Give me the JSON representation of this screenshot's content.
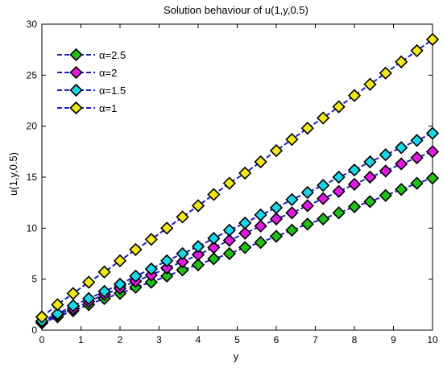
{
  "chart_data": {
    "type": "line",
    "title": "Solution behaviour of u(1,y,0.5)",
    "xlabel": "y",
    "ylabel": "u(1,y,0.5)",
    "xlim": [
      0,
      10
    ],
    "ylim": [
      0,
      30
    ],
    "xticks": [
      "0",
      "1",
      "2",
      "3",
      "4",
      "5",
      "6",
      "7",
      "8",
      "9",
      "10"
    ],
    "yticks": [
      "0",
      "5",
      "10",
      "15",
      "20",
      "25",
      "30"
    ],
    "grid": false,
    "legend_position": "top-left",
    "line_color": "#1f1fbf",
    "line_style": "dashed",
    "marker": "diamond",
    "x": [
      0,
      0.4,
      0.8,
      1.2,
      1.6,
      2.0,
      2.4,
      2.8,
      3.2,
      3.6,
      4.0,
      4.4,
      4.8,
      5.2,
      5.6,
      6.0,
      6.4,
      6.8,
      7.2,
      7.6,
      8.0,
      8.4,
      8.8,
      9.2,
      9.6,
      10.0
    ],
    "series": [
      {
        "name": "α=2.5",
        "marker_color": "#22c11a",
        "values": [
          0.7,
          1.3,
          1.9,
          2.5,
          3.1,
          3.6,
          4.2,
          4.7,
          5.3,
          5.9,
          6.4,
          7.0,
          7.5,
          8.1,
          8.6,
          9.2,
          9.8,
          10.4,
          10.9,
          11.5,
          12.1,
          12.6,
          13.2,
          13.8,
          14.4,
          14.9
        ]
      },
      {
        "name": "α=2",
        "marker_color": "#e21ae2",
        "values": [
          0.8,
          1.5,
          2.1,
          2.8,
          3.5,
          4.1,
          4.8,
          5.4,
          6.1,
          6.7,
          7.4,
          8.1,
          8.8,
          9.5,
          10.2,
          10.9,
          11.5,
          12.2,
          12.9,
          13.6,
          14.3,
          15.0,
          15.6,
          16.3,
          16.9,
          17.5
        ]
      },
      {
        "name": "α=1.5",
        "marker_color": "#1ad7e6",
        "values": [
          0.9,
          1.6,
          2.4,
          3.1,
          3.8,
          4.5,
          5.3,
          6.0,
          6.8,
          7.5,
          8.2,
          9.0,
          9.8,
          10.5,
          11.3,
          12.0,
          12.8,
          13.5,
          14.2,
          15.0,
          15.7,
          16.5,
          17.2,
          17.9,
          18.6,
          19.3
        ]
      },
      {
        "name": "α=1",
        "marker_color": "#f0e81a",
        "values": [
          1.3,
          2.5,
          3.6,
          4.7,
          5.7,
          6.8,
          7.9,
          8.9,
          10.0,
          11.1,
          12.2,
          13.3,
          14.4,
          15.4,
          16.5,
          17.6,
          18.7,
          19.8,
          20.8,
          21.9,
          23.0,
          24.1,
          25.2,
          26.3,
          27.4,
          28.5
        ]
      }
    ]
  }
}
